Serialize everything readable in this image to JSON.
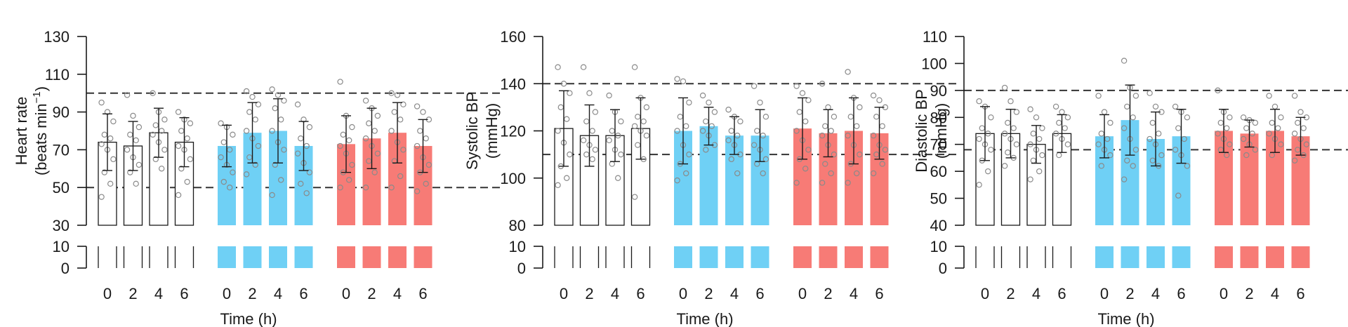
{
  "colors": {
    "control": "#ffffff",
    "blue": "#6fd0f5",
    "red": "#f77b76",
    "ink": "#1a1a1a",
    "dot": "#8a8a8a"
  },
  "chart_data": [
    {
      "type": "bar",
      "title": "",
      "ylabel_line1": "Heart rate",
      "ylabel_line2": "(beats min",
      "ylabel_sup": "−1",
      "ylabel_close": ")",
      "xlabel": "Time (h)",
      "ylim": [
        30,
        130
      ],
      "yticks": [
        "130",
        "110",
        "90",
        "70",
        "50",
        "30"
      ],
      "ytick_values": [
        130,
        110,
        90,
        70,
        50,
        30
      ],
      "break_ticks": [
        "10",
        "0"
      ],
      "reference_lines": [
        100,
        50
      ],
      "categories": [
        "0",
        "2",
        "4",
        "6"
      ],
      "series": [
        {
          "name": "control",
          "color_key": "control",
          "values": [
            74,
            72,
            79,
            74
          ],
          "sd": [
            15,
            13,
            13,
            13
          ],
          "points": [
            [
              95,
              90,
              85,
              78,
              76,
              73,
              70,
              65,
              58,
              52,
              45
            ],
            [
              99,
              88,
              82,
              78,
              75,
              70,
              66,
              62,
              58,
              52
            ],
            [
              100,
              90,
              86,
              83,
              80,
              78,
              74,
              70,
              65,
              60
            ],
            [
              90,
              86,
              84,
              80,
              76,
              72,
              70,
              65,
              60,
              53,
              46
            ]
          ]
        },
        {
          "name": "blue",
          "color_key": "blue",
          "values": [
            72,
            79,
            80,
            72
          ],
          "sd": [
            11,
            16,
            17,
            13
          ],
          "points": [
            [
              84,
              82,
              78,
              74,
              70,
              66,
              62,
              58,
              53,
              50
            ],
            [
              101,
              98,
              94,
              90,
              86,
              80,
              76,
              72,
              66,
              62,
              57
            ],
            [
              102,
              99,
              96,
              92,
              86,
              80,
              74,
              70,
              62,
              54,
              46
            ],
            [
              94,
              86,
              82,
              76,
              72,
              68,
              63,
              58,
              52,
              47
            ]
          ]
        },
        {
          "name": "red",
          "color_key": "red",
          "values": [
            73,
            76,
            79,
            72
          ],
          "sd": [
            15,
            16,
            16,
            14
          ],
          "points": [
            [
              106,
              88,
              82,
              78,
              75,
              72,
              68,
              62,
              58,
              54,
              50
            ],
            [
              96,
              92,
              88,
              84,
              80,
              76,
              72,
              68,
              64,
              58,
              50
            ],
            [
              100,
              99,
              94,
              90,
              86,
              80,
              74,
              70,
              64,
              56,
              50
            ],
            [
              93,
              90,
              86,
              80,
              76,
              72,
              66,
              62,
              58,
              52,
              48
            ]
          ]
        }
      ]
    },
    {
      "type": "bar",
      "title": "",
      "ylabel_line1": "Systolic BP",
      "ylabel_line2": "(mmHg)",
      "ylabel_sup": "",
      "ylabel_close": "",
      "xlabel": "Time (h)",
      "ylim": [
        80,
        160
      ],
      "yticks": [
        "160",
        "140",
        "120",
        "100",
        "80"
      ],
      "ytick_values": [
        160,
        140,
        120,
        100,
        80
      ],
      "break_ticks": [
        "10",
        "0"
      ],
      "reference_lines": [
        140,
        110
      ],
      "categories": [
        "0",
        "2",
        "4",
        "6"
      ],
      "series": [
        {
          "name": "control",
          "color_key": "control",
          "values": [
            121,
            118,
            118,
            121
          ],
          "sd": [
            16,
            13,
            11,
            13
          ],
          "points": [
            [
              147,
              140,
              136,
              130,
              125,
              120,
              115,
              110,
              105,
              100,
              97
            ],
            [
              147,
              136,
              128,
              124,
              120,
              116,
              114,
              112,
              110,
              108
            ],
            [
              135,
              128,
              124,
              120,
              118,
              116,
              112,
              110,
              106,
              100
            ],
            [
              147,
              134,
              130,
              126,
              124,
              122,
              120,
              118,
              114,
              108,
              92
            ]
          ]
        },
        {
          "name": "blue",
          "color_key": "blue",
          "values": [
            120,
            122,
            118,
            118
          ],
          "sd": [
            14,
            8,
            8,
            11
          ],
          "points": [
            [
              142,
              141,
              132,
              126,
              122,
              120,
              114,
              110,
              106,
              102,
              99
            ],
            [
              135,
              132,
              128,
              124,
              122,
              120,
              118,
              114,
              112
            ],
            [
              129,
              126,
              124,
              120,
              118,
              116,
              114,
              110,
              108,
              102
            ],
            [
              139,
              132,
              126,
              120,
              118,
              114,
              112,
              108,
              106,
              102
            ]
          ]
        },
        {
          "name": "red",
          "color_key": "red",
          "values": [
            121,
            119,
            120,
            119
          ],
          "sd": [
            13,
            10,
            14,
            11
          ],
          "points": [
            [
              139,
              136,
              133,
              128,
              124,
              120,
              116,
              112,
              108,
              104,
              98
            ],
            [
              140,
              130,
              126,
              122,
              120,
              118,
              114,
              110,
              106,
              102,
              98
            ],
            [
              145,
              134,
              130,
              126,
              122,
              118,
              114,
              110,
              106,
              102,
              98
            ],
            [
              135,
              133,
              130,
              126,
              122,
              118,
              114,
              112,
              110,
              106,
              102
            ]
          ]
        }
      ]
    },
    {
      "type": "bar",
      "title": "",
      "ylabel_line1": "Diastolic BP",
      "ylabel_line2": "(mmHg)",
      "ylabel_sup": "",
      "ylabel_close": "",
      "xlabel": "Time (h)",
      "ylim": [
        40,
        110
      ],
      "yticks": [
        "110",
        "100",
        "90",
        "80",
        "70",
        "60",
        "50",
        "40"
      ],
      "ytick_values": [
        110,
        100,
        90,
        80,
        70,
        60,
        50,
        40
      ],
      "break_ticks": [
        "10",
        "0"
      ],
      "reference_lines": [
        90,
        68
      ],
      "categories": [
        "0",
        "2",
        "4",
        "6"
      ],
      "series": [
        {
          "name": "control",
          "color_key": "control",
          "values": [
            74,
            74,
            70,
            74
          ],
          "sd": [
            10,
            9,
            7,
            7
          ],
          "points": [
            [
              86,
              84,
              80,
              76,
              74,
              72,
              70,
              68,
              64,
              60,
              55
            ],
            [
              91,
              86,
              82,
              78,
              76,
              74,
              72,
              70,
              67,
              65,
              62
            ],
            [
              83,
              80,
              76,
              74,
              72,
              70,
              68,
              66,
              64,
              60,
              57
            ],
            [
              84,
              82,
              80,
              78,
              76,
              74,
              72,
              70,
              66
            ]
          ]
        },
        {
          "name": "blue",
          "color_key": "blue",
          "values": [
            73,
            79,
            72,
            73
          ],
          "sd": [
            8,
            13,
            10,
            10
          ],
          "points": [
            [
              88,
              82,
              78,
              74,
              72,
              70,
              68,
              66,
              62
            ],
            [
              101,
              91,
              88,
              84,
              80,
              76,
              72,
              68,
              64,
              62,
              57
            ],
            [
              89,
              84,
              82,
              78,
              74,
              72,
              70,
              66,
              64,
              62
            ],
            [
              84,
              82,
              80,
              76,
              72,
              68,
              66,
              62,
              51
            ]
          ]
        },
        {
          "name": "red",
          "color_key": "red",
          "values": [
            75,
            74,
            75,
            73
          ],
          "sd": [
            8,
            5,
            8,
            7
          ],
          "points": [
            [
              90,
              82,
              80,
              78,
              76,
              74,
              72,
              70,
              68,
              66
            ],
            [
              80,
              79,
              78,
              76,
              74,
              72,
              70,
              68,
              66
            ],
            [
              88,
              84,
              80,
              78,
              76,
              74,
              72,
              70,
              66
            ],
            [
              88,
              82,
              80,
              78,
              76,
              74,
              72,
              70,
              68,
              66,
              64
            ]
          ]
        }
      ]
    }
  ]
}
